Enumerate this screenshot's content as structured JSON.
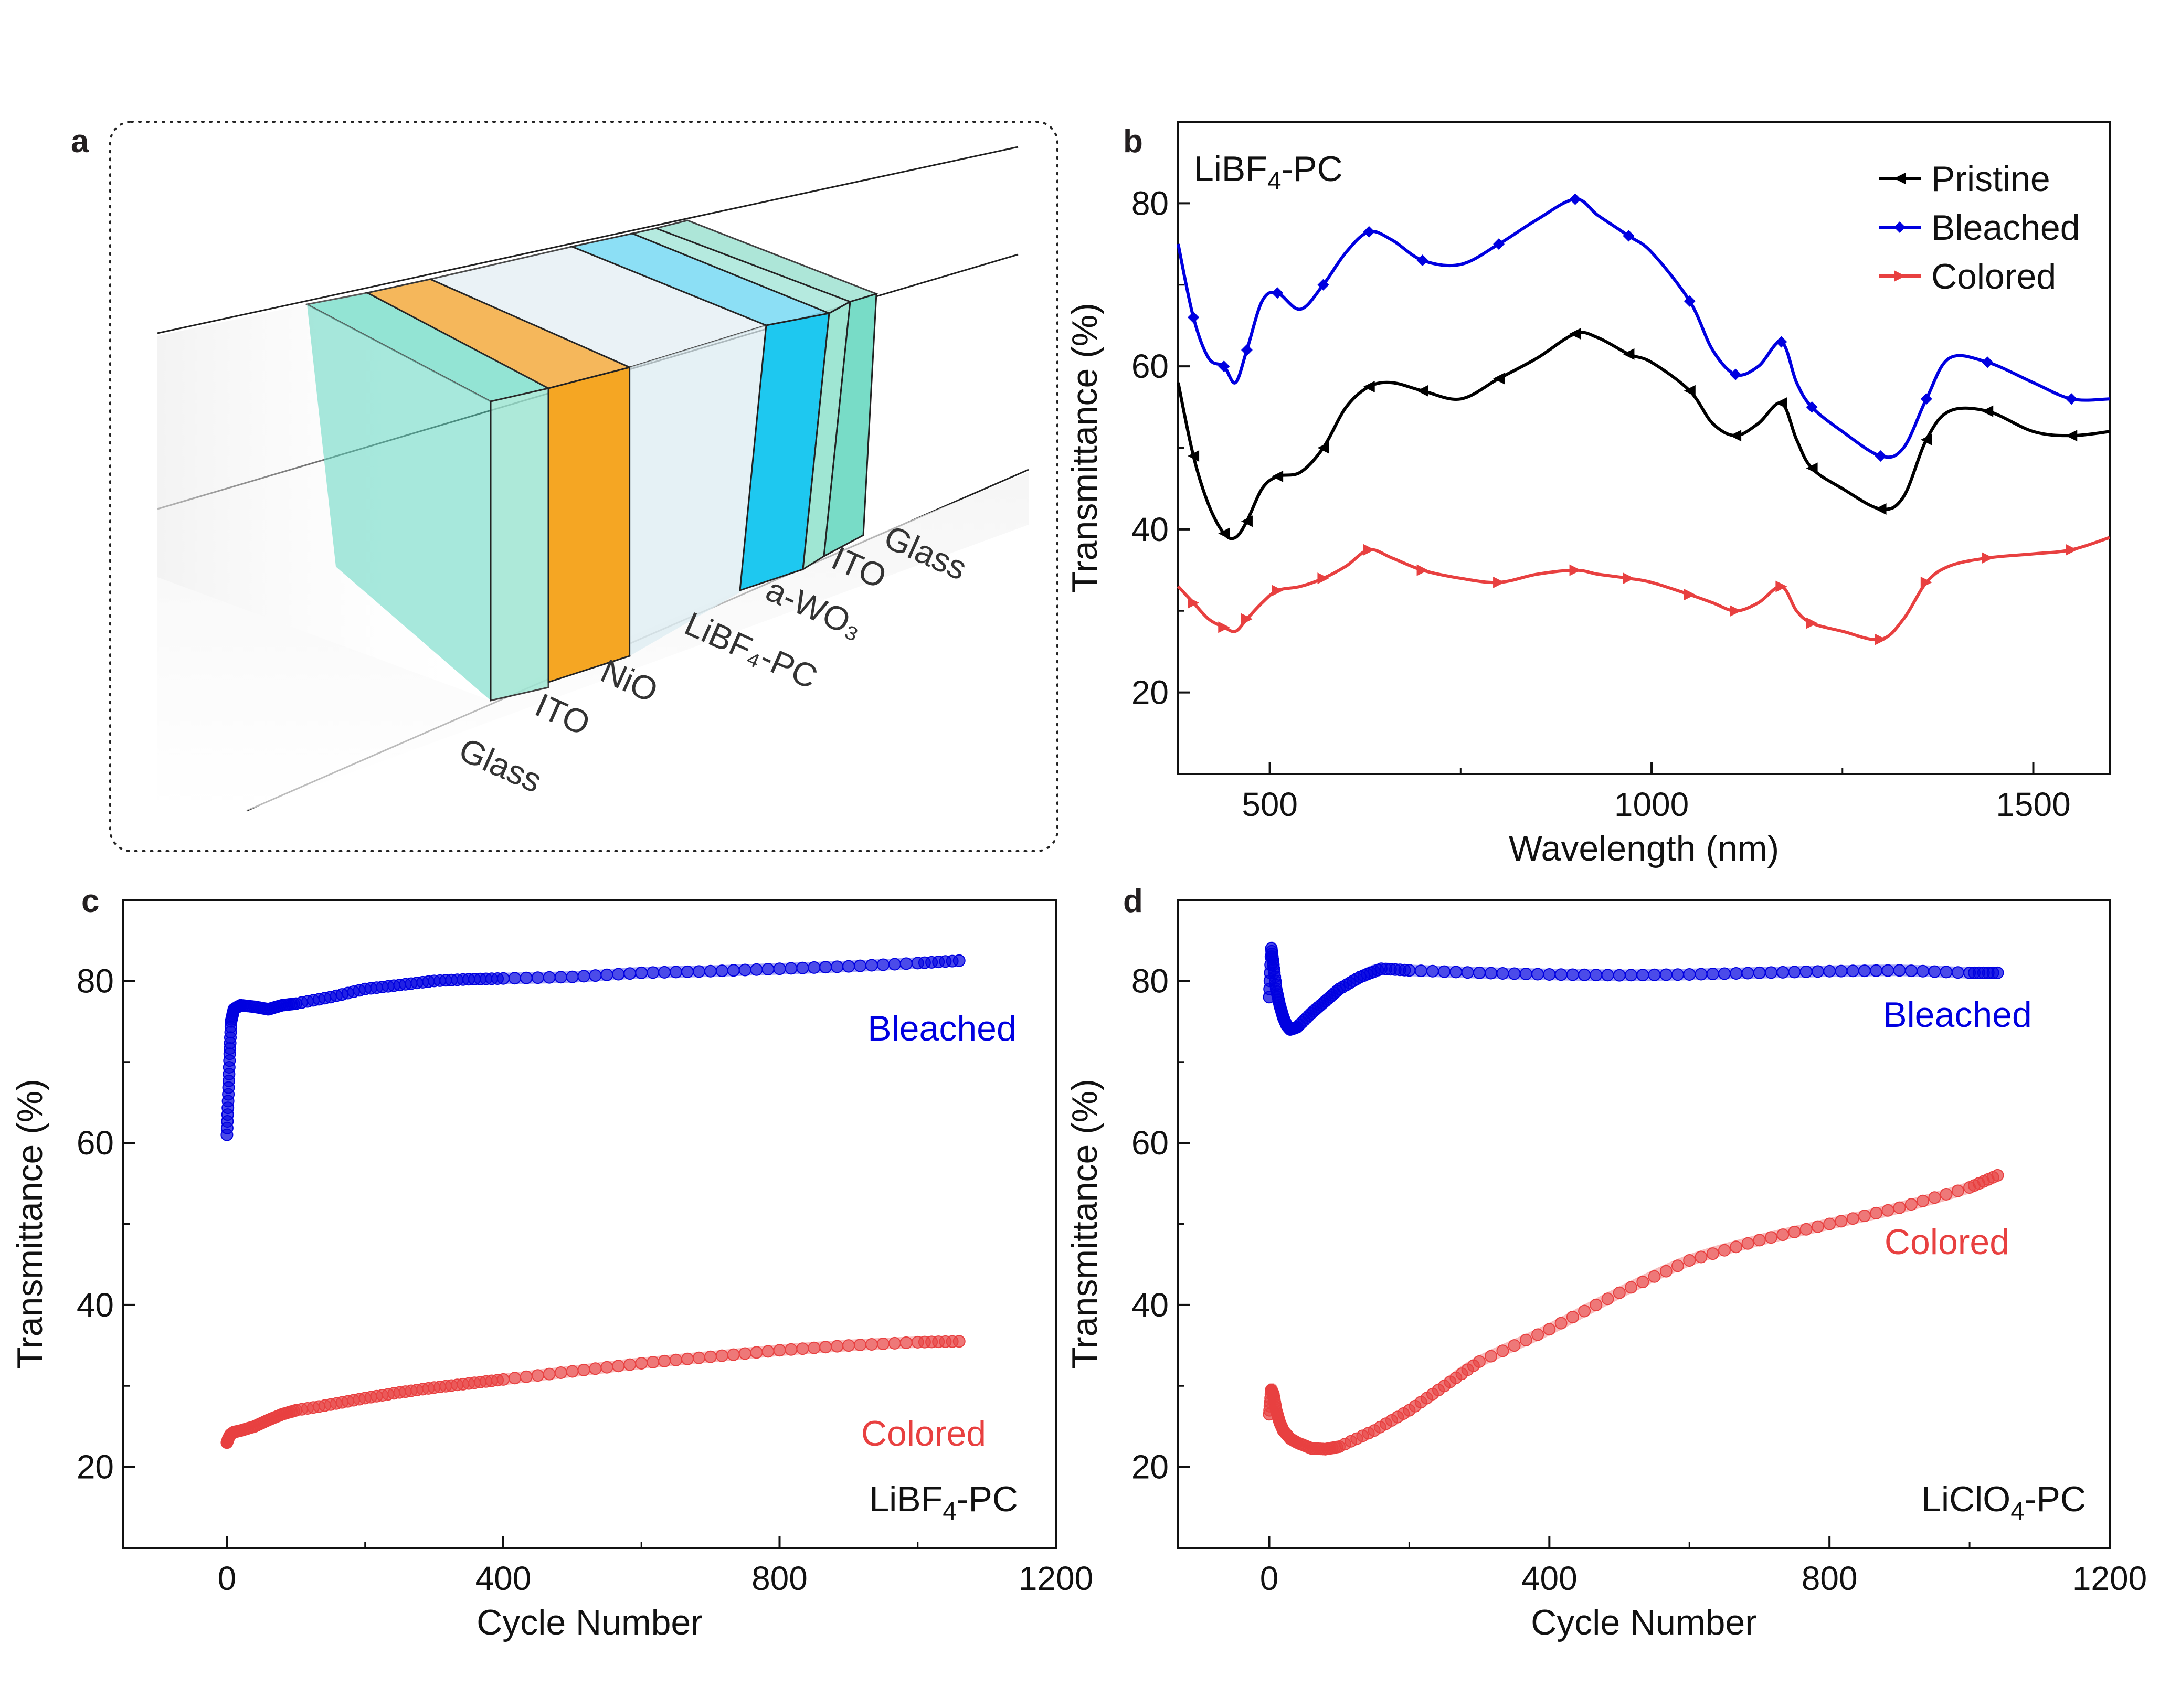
{
  "panels": {
    "a": {
      "letter": "a",
      "layers": [
        {
          "label": "Glass",
          "color": "#5fd6c0"
        },
        {
          "label": "ITO",
          "color": "#9fe6d3"
        },
        {
          "label": "NiO",
          "color": "#f5a623"
        },
        {
          "label": "LiBF₄-PC",
          "color": "#d6edf2"
        },
        {
          "label": "a-WO₃",
          "color": "#1ec8f0"
        },
        {
          "label": "ITO",
          "color": "#9fe6d3"
        },
        {
          "label": "Glass",
          "color": "#78dcc7"
        }
      ]
    },
    "b": {
      "letter": "b"
    },
    "c": {
      "letter": "c"
    },
    "d": {
      "letter": "d"
    }
  },
  "chart_data": [
    {
      "panel": "b",
      "type": "line",
      "annotation": {
        "main": "LiBF",
        "sub": "4",
        "tail": "-PC"
      },
      "xlabel": "Wavelength (nm)",
      "ylabel": "Transmittance (%)",
      "xlim": [
        380,
        1600
      ],
      "ylim": [
        10,
        90
      ],
      "xticks": [
        500,
        1000,
        1500
      ],
      "yticks": [
        20,
        40,
        60,
        80
      ],
      "legend_position": "top-right",
      "series": [
        {
          "name": "Pristine",
          "color": "#000000",
          "marker": "triangle-left",
          "x": [
            380,
            400,
            420,
            440,
            455,
            470,
            490,
            510,
            540,
            570,
            600,
            630,
            660,
            700,
            750,
            800,
            850,
            900,
            930,
            970,
            1000,
            1050,
            1080,
            1110,
            1140,
            1170,
            1190,
            1210,
            1250,
            1300,
            1330,
            1360,
            1390,
            1440,
            1500,
            1550,
            1600
          ],
          "y": [
            58,
            49,
            43,
            39.5,
            39,
            41,
            45,
            46.5,
            47,
            50,
            55,
            57.5,
            58,
            57,
            56,
            58.5,
            61,
            64,
            63.5,
            61.5,
            60.5,
            57,
            53,
            51.5,
            53,
            55.5,
            51,
            47.5,
            45,
            42.5,
            44,
            51,
            54.5,
            54.5,
            52,
            51.5,
            52
          ]
        },
        {
          "name": "Bleached",
          "color": "#0000e0",
          "marker": "diamond",
          "x": [
            380,
            400,
            420,
            440,
            455,
            470,
            490,
            510,
            540,
            570,
            600,
            630,
            660,
            700,
            750,
            800,
            850,
            900,
            930,
            970,
            1000,
            1050,
            1080,
            1110,
            1140,
            1170,
            1190,
            1210,
            1250,
            1300,
            1330,
            1360,
            1390,
            1440,
            1500,
            1550,
            1600
          ],
          "y": [
            75,
            66,
            61,
            60,
            58,
            62,
            68,
            69,
            67,
            70,
            74,
            76.5,
            75.5,
            73,
            72.5,
            75,
            78,
            80.5,
            78.5,
            76,
            74,
            68,
            62,
            59,
            60,
            63,
            58,
            55,
            52,
            49,
            50,
            56,
            61,
            60.5,
            58,
            56,
            56
          ]
        },
        {
          "name": "Colored",
          "color": "#e84040",
          "marker": "triangle-right",
          "x": [
            380,
            400,
            420,
            440,
            455,
            470,
            490,
            510,
            540,
            570,
            600,
            630,
            660,
            700,
            750,
            800,
            850,
            900,
            930,
            970,
            1000,
            1050,
            1080,
            1110,
            1140,
            1170,
            1190,
            1210,
            1250,
            1300,
            1330,
            1360,
            1390,
            1440,
            1500,
            1550,
            1600
          ],
          "y": [
            33,
            31,
            29,
            28,
            27.5,
            29,
            31,
            32.5,
            33,
            34,
            35.5,
            37.5,
            36.5,
            35,
            34,
            33.5,
            34.5,
            35,
            34.5,
            34,
            33.5,
            32,
            31,
            30,
            31,
            33,
            30,
            28.5,
            27.5,
            26.5,
            29,
            33.5,
            35.5,
            36.5,
            37,
            37.5,
            39
          ]
        }
      ]
    },
    {
      "panel": "c",
      "type": "scatter",
      "annotation": {
        "main": "LiBF",
        "sub": "4",
        "tail": "-PC"
      },
      "xlabel": "Cycle Number",
      "ylabel": "Transmittance (%)",
      "xlim": [
        -150,
        1200
      ],
      "ylim": [
        10,
        90
      ],
      "xticks": [
        0,
        400,
        800,
        1200
      ],
      "yticks": [
        20,
        40,
        60,
        80
      ],
      "series": [
        {
          "name": "Bleached",
          "color": "#0000e0",
          "x": [
            0,
            2,
            4,
            6,
            10,
            20,
            40,
            60,
            80,
            100,
            150,
            200,
            250,
            300,
            350,
            400,
            500,
            600,
            700,
            800,
            900,
            1000,
            1060
          ],
          "y": [
            61,
            66,
            71,
            75,
            76.5,
            77,
            76.8,
            76.5,
            77,
            77.2,
            78,
            79,
            79.5,
            80,
            80.2,
            80.3,
            80.5,
            81,
            81.2,
            81.5,
            81.8,
            82.2,
            82.5
          ]
        },
        {
          "name": "Colored",
          "color": "#e84040",
          "x": [
            0,
            2,
            5,
            10,
            20,
            40,
            60,
            80,
            100,
            150,
            200,
            250,
            300,
            350,
            400,
            500,
            600,
            700,
            800,
            900,
            1000,
            1060
          ],
          "y": [
            23,
            23.5,
            24,
            24.3,
            24.5,
            25,
            25.8,
            26.5,
            27,
            27.7,
            28.5,
            29.2,
            29.8,
            30.3,
            30.8,
            31.8,
            32.8,
            33.6,
            34.4,
            35,
            35.4,
            35.5
          ]
        }
      ]
    },
    {
      "panel": "d",
      "type": "scatter",
      "annotation": {
        "main": "LiClO",
        "sub": "4",
        "tail": "-PC"
      },
      "xlabel": "Cycle Number",
      "ylabel": "Transmittance (%)",
      "xlim": [
        -130,
        1200
      ],
      "ylim": [
        10,
        90
      ],
      "xticks": [
        0,
        400,
        800,
        1200
      ],
      "yticks": [
        20,
        40,
        60,
        80
      ],
      "series": [
        {
          "name": "Bleached",
          "color": "#0000e0",
          "x": [
            0,
            3,
            6,
            10,
            15,
            20,
            25,
            30,
            40,
            60,
            80,
            100,
            130,
            160,
            200,
            300,
            400,
            500,
            600,
            700,
            800,
            900,
            1000,
            1040
          ],
          "y": [
            78,
            84,
            82,
            79,
            77,
            75.5,
            74.5,
            74,
            74.3,
            76,
            77.5,
            79,
            80.5,
            81.5,
            81.3,
            81,
            80.8,
            80.7,
            80.8,
            81,
            81.2,
            81.3,
            81,
            81
          ]
        },
        {
          "name": "Colored",
          "color": "#e84040",
          "x": [
            0,
            3,
            6,
            10,
            15,
            20,
            30,
            40,
            60,
            80,
            100,
            150,
            200,
            250,
            300,
            400,
            500,
            600,
            700,
            800,
            900,
            1000,
            1040
          ],
          "y": [
            26.5,
            29.5,
            29,
            27,
            25.5,
            24.5,
            23.5,
            23,
            22.3,
            22.2,
            22.5,
            24.5,
            27,
            30,
            33,
            37,
            41.5,
            45.5,
            48,
            50,
            52,
            54.5,
            56
          ]
        }
      ]
    }
  ]
}
